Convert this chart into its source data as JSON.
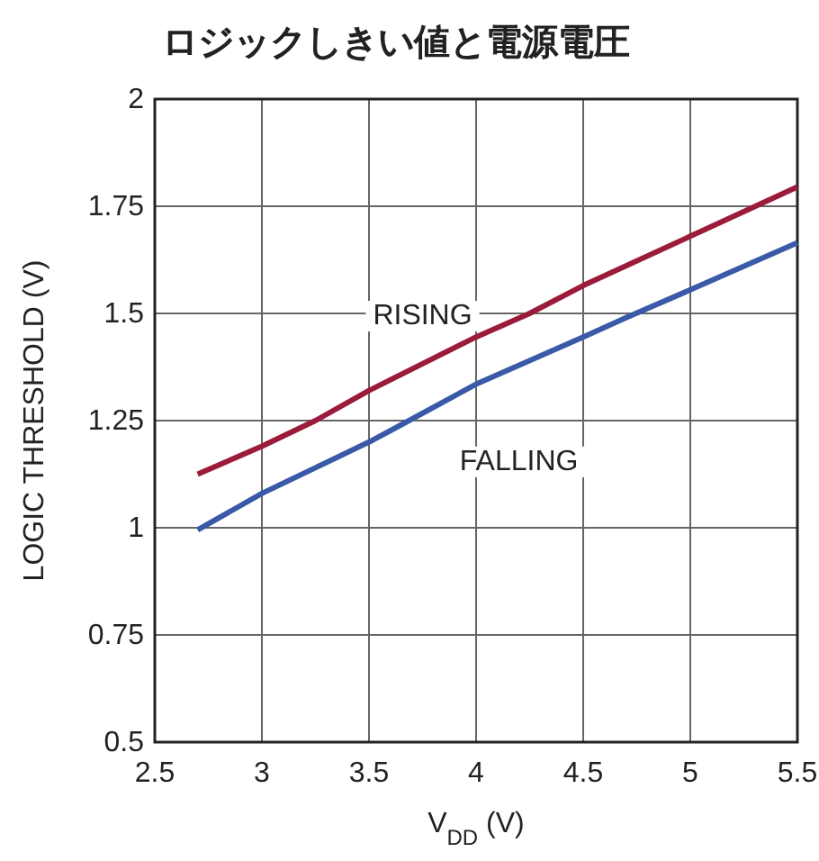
{
  "chart_data": {
    "type": "line",
    "title": "ロジックしきい値と電源電圧",
    "xlabel": "V$_{DD}$ (V)",
    "ylabel": "LOGIC THRESHOLD (V)",
    "xlim": [
      2.5,
      5.5
    ],
    "xticks": [
      2.5,
      3,
      3.5,
      4,
      4.5,
      5,
      5.5
    ],
    "ylim": [
      0.5,
      2
    ],
    "yticks": [
      0.5,
      0.75,
      1,
      1.25,
      1.5,
      1.75,
      2
    ],
    "grid": true,
    "legend": false,
    "series": [
      {
        "name": "RISING",
        "color": "#9b1b3a",
        "x": [
          2.7,
          3.0,
          3.25,
          3.5,
          4.0,
          4.25,
          4.5,
          5.0,
          5.5
        ],
        "values": [
          1.125,
          1.19,
          1.25,
          1.32,
          1.445,
          1.5,
          1.565,
          1.68,
          1.795
        ]
      },
      {
        "name": "FALLING",
        "color": "#3a5aa8",
        "x": [
          2.7,
          3.0,
          3.5,
          3.65,
          4.0,
          4.5,
          4.7,
          5.0,
          5.5
        ],
        "values": [
          0.995,
          1.08,
          1.2,
          1.24,
          1.335,
          1.445,
          1.49,
          1.555,
          1.665
        ]
      }
    ]
  }
}
